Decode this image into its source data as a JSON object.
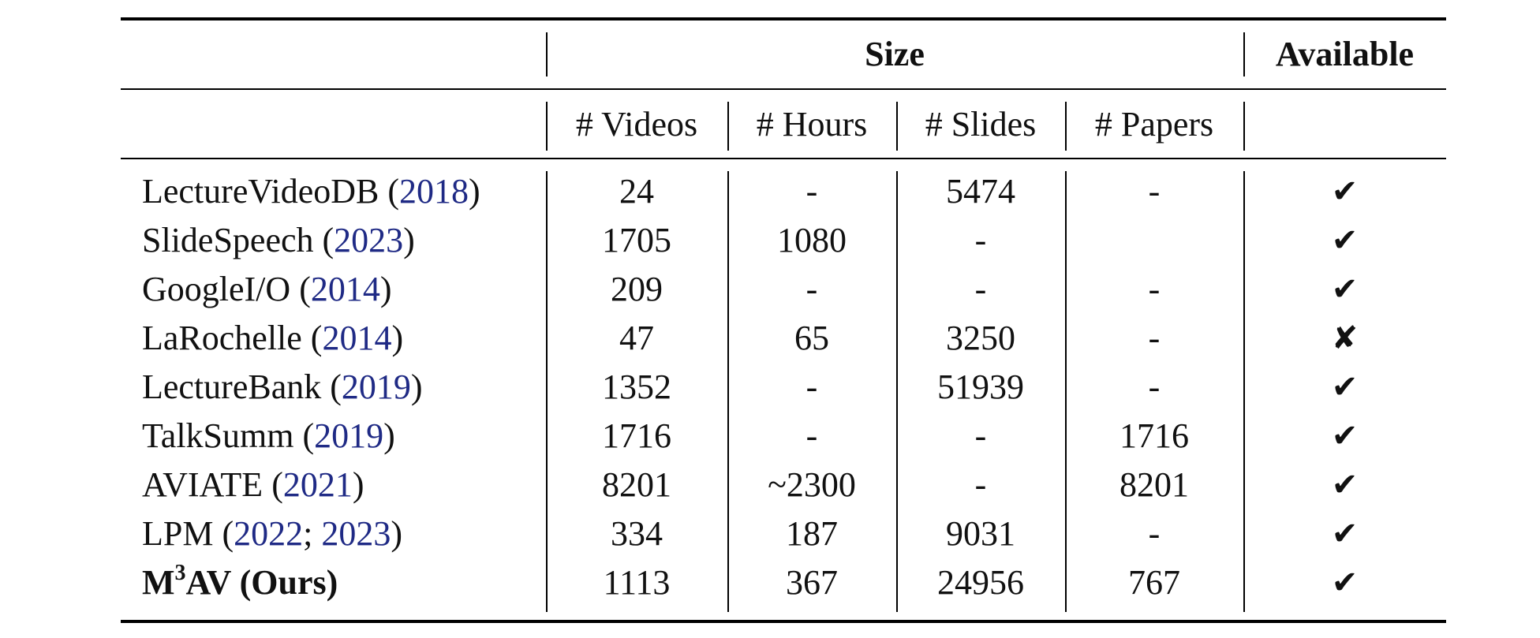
{
  "table": {
    "header_group": {
      "size": "Size",
      "available": "Available"
    },
    "subheaders": [
      "# Videos",
      "# Hours",
      "# Slides",
      "# Papers"
    ],
    "rows": [
      {
        "name": "LectureVideoDB",
        "cites": [
          "2018"
        ],
        "videos": "24",
        "hours": "-",
        "slides": "5474",
        "papers": "-",
        "available": "✔"
      },
      {
        "name": "SlideSpeech",
        "cites": [
          "2023"
        ],
        "videos": "1705",
        "hours": "1080",
        "slides": "-",
        "papers": "",
        "available": "✔"
      },
      {
        "name": "GoogleI/O",
        "cites": [
          "2014"
        ],
        "videos": "209",
        "hours": "-",
        "slides": "-",
        "papers": "-",
        "available": "✔"
      },
      {
        "name": "LaRochelle",
        "cites": [
          "2014"
        ],
        "videos": "47",
        "hours": "65",
        "slides": "3250",
        "papers": "-",
        "available": "✘"
      },
      {
        "name": "LectureBank",
        "cites": [
          "2019"
        ],
        "videos": "1352",
        "hours": "-",
        "slides": "51939",
        "papers": "-",
        "available": "✔"
      },
      {
        "name": "TalkSumm",
        "cites": [
          "2019"
        ],
        "videos": "1716",
        "hours": "-",
        "slides": "-",
        "papers": "1716",
        "available": "✔"
      },
      {
        "name": "AVIATE",
        "cites": [
          "2021"
        ],
        "videos": "8201",
        "hours": "~2300",
        "slides": "-",
        "papers": "8201",
        "available": "✔"
      },
      {
        "name": "LPM",
        "cites": [
          "2022",
          "2023"
        ],
        "videos": "334",
        "hours": "187",
        "slides": "9031",
        "papers": "-",
        "available": "✔"
      },
      {
        "name": "M",
        "name_sup": "3",
        "name_rest": "AV (Ours)",
        "videos": "1113",
        "hours": "367",
        "slides": "24956",
        "papers": "767",
        "available": "✔"
      }
    ]
  }
}
